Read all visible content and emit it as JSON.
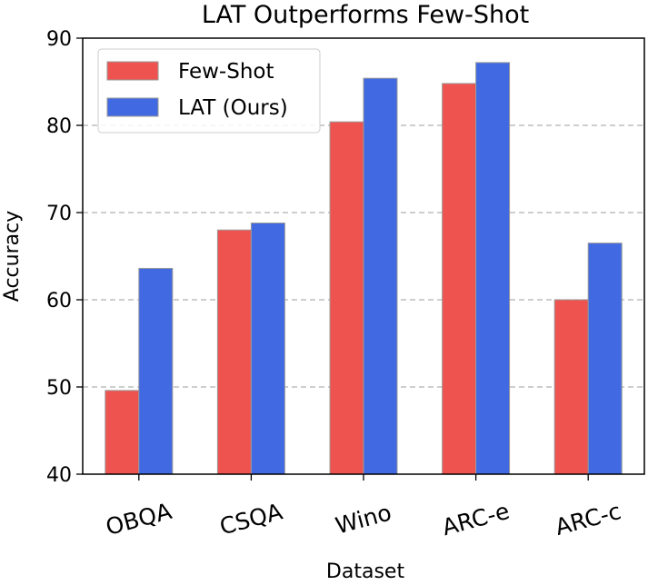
{
  "chart_data": {
    "type": "bar",
    "title": "LAT Outperforms Few-Shot",
    "xlabel": "Dataset",
    "ylabel": "Accuracy",
    "categories": [
      "OBQA",
      "CSQA",
      "Wino",
      "ARC-e",
      "ARC-c"
    ],
    "series": [
      {
        "name": "Few-Shot",
        "color": "#ef5350",
        "values": [
          49.6,
          68.0,
          80.4,
          84.8,
          60.0
        ]
      },
      {
        "name": "LAT (Ours)",
        "color": "#4169e1",
        "values": [
          63.6,
          68.8,
          85.4,
          87.2,
          66.5
        ]
      }
    ],
    "ylim": [
      40,
      90
    ],
    "yticks": [
      "40",
      "50",
      "60",
      "70",
      "80",
      "90"
    ],
    "grid": "horizontal dashed",
    "legend_position": "top-left",
    "xtick_rotation": -15
  }
}
